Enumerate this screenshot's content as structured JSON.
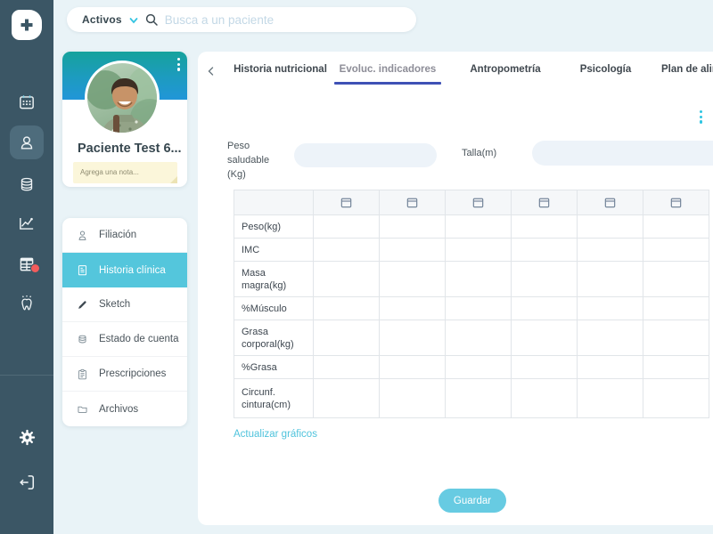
{
  "colors": {
    "sidebar": "#3b5665",
    "accent_cyan": "#54c6dc",
    "tab_underline_indigo": "#3f51b5",
    "notification_red": "#f25c5c",
    "banner_gradient_top": "#16a29c",
    "banner_gradient_bottom": "#2196d8",
    "page_background": "#e9f3f7"
  },
  "topbar": {
    "filter": {
      "label": "Activos"
    },
    "search": {
      "placeholder": "Busca a un paciente",
      "value": ""
    }
  },
  "sidebar": {
    "icons": [
      "app-logo",
      "calendar",
      "patients",
      "database-stack",
      "progress-chart",
      "diet-grid",
      "tooth"
    ],
    "active_icon": "patients",
    "has_notification_on": "diet-grid",
    "bottom_icons": [
      "settings-gear",
      "logout"
    ]
  },
  "patient_card": {
    "name": "Paciente Test 6...",
    "note_placeholder": "Agrega una nota...",
    "menu_icon": "three-dots-vertical"
  },
  "patient_menu": {
    "items": [
      {
        "label": "Filiación",
        "icon": "person",
        "active": false
      },
      {
        "label": "Historia clínica",
        "icon": "document",
        "active": true
      },
      {
        "label": "Sketch",
        "icon": "pencil",
        "active": false
      },
      {
        "label": "Estado de cuenta",
        "icon": "coins",
        "active": false
      },
      {
        "label": "Prescripciones",
        "icon": "clipboard",
        "active": false
      },
      {
        "label": "Archivos",
        "icon": "folder",
        "active": false
      }
    ]
  },
  "tabs": {
    "items": [
      {
        "label": "Historia nutricional",
        "active": false
      },
      {
        "label": "Evoluc. indicadores",
        "active": true
      },
      {
        "label": "Antropometría",
        "active": false
      },
      {
        "label": "Psicología",
        "active": false
      },
      {
        "label": "Plan de alim",
        "active": false,
        "truncated": true
      }
    ]
  },
  "form": {
    "peso_label": "Peso saludable (Kg)",
    "peso_value": "",
    "talla_label": "Talla(m)",
    "talla_value": ""
  },
  "table": {
    "date_columns": 6,
    "header_icon": "calendar",
    "row_labels": [
      "Peso(kg)",
      "IMC",
      "Masa magra(kg)",
      "%Músculo",
      "Grasa corporal(kg)",
      "%Grasa",
      "Circunf. cintura(cm)"
    ],
    "cells": "empty"
  },
  "actions": {
    "update_charts_label": "Actualizar gráficos",
    "save_label": "Guardar"
  }
}
